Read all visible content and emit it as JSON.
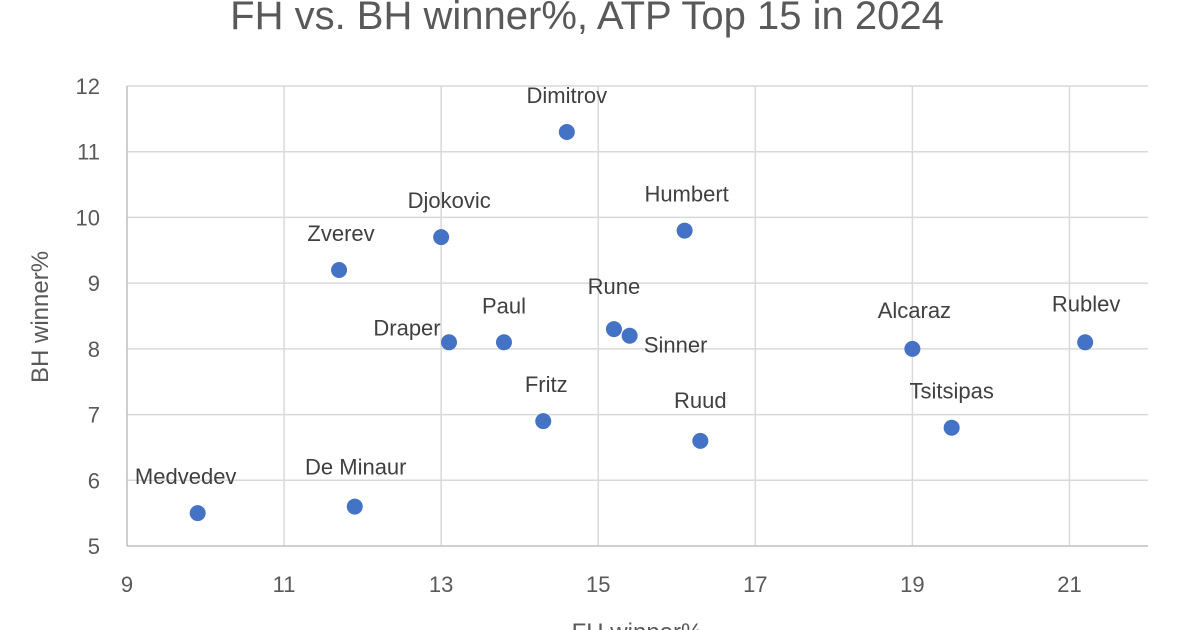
{
  "chart_data": {
    "type": "scatter",
    "title": "FH vs. BH winner%, ATP Top 15 in 2024",
    "xlabel": "FH winner%",
    "ylabel": "BH winner%",
    "xlim": [
      9,
      22
    ],
    "ylim": [
      5,
      12
    ],
    "xticks": [
      9,
      11,
      13,
      15,
      17,
      19,
      21
    ],
    "yticks": [
      5,
      6,
      7,
      8,
      9,
      10,
      11,
      12
    ],
    "grid": true,
    "legend": "none",
    "marker_color": "#4472C4",
    "points": [
      {
        "label": "Dimitrov",
        "x": 14.6,
        "y": 11.3
      },
      {
        "label": "Humbert",
        "x": 16.1,
        "y": 9.8
      },
      {
        "label": "Djokovic",
        "x": 13.0,
        "y": 9.7
      },
      {
        "label": "Zverev",
        "x": 11.7,
        "y": 9.2
      },
      {
        "label": "Paul",
        "x": 13.8,
        "y": 8.1
      },
      {
        "label": "Draper",
        "x": 13.1,
        "y": 8.1
      },
      {
        "label": "Rune",
        "x": 15.2,
        "y": 8.3
      },
      {
        "label": "Sinner",
        "x": 15.4,
        "y": 8.2
      },
      {
        "label": "Alcaraz",
        "x": 19.0,
        "y": 8.0
      },
      {
        "label": "Rublev",
        "x": 21.2,
        "y": 8.1
      },
      {
        "label": "Fritz",
        "x": 14.3,
        "y": 6.9
      },
      {
        "label": "Ruud",
        "x": 16.3,
        "y": 6.6
      },
      {
        "label": "Tsitsipas",
        "x": 19.5,
        "y": 6.8
      },
      {
        "label": "De Minaur",
        "x": 11.9,
        "y": 5.6
      },
      {
        "label": "Medvedev",
        "x": 9.9,
        "y": 5.5
      }
    ]
  }
}
